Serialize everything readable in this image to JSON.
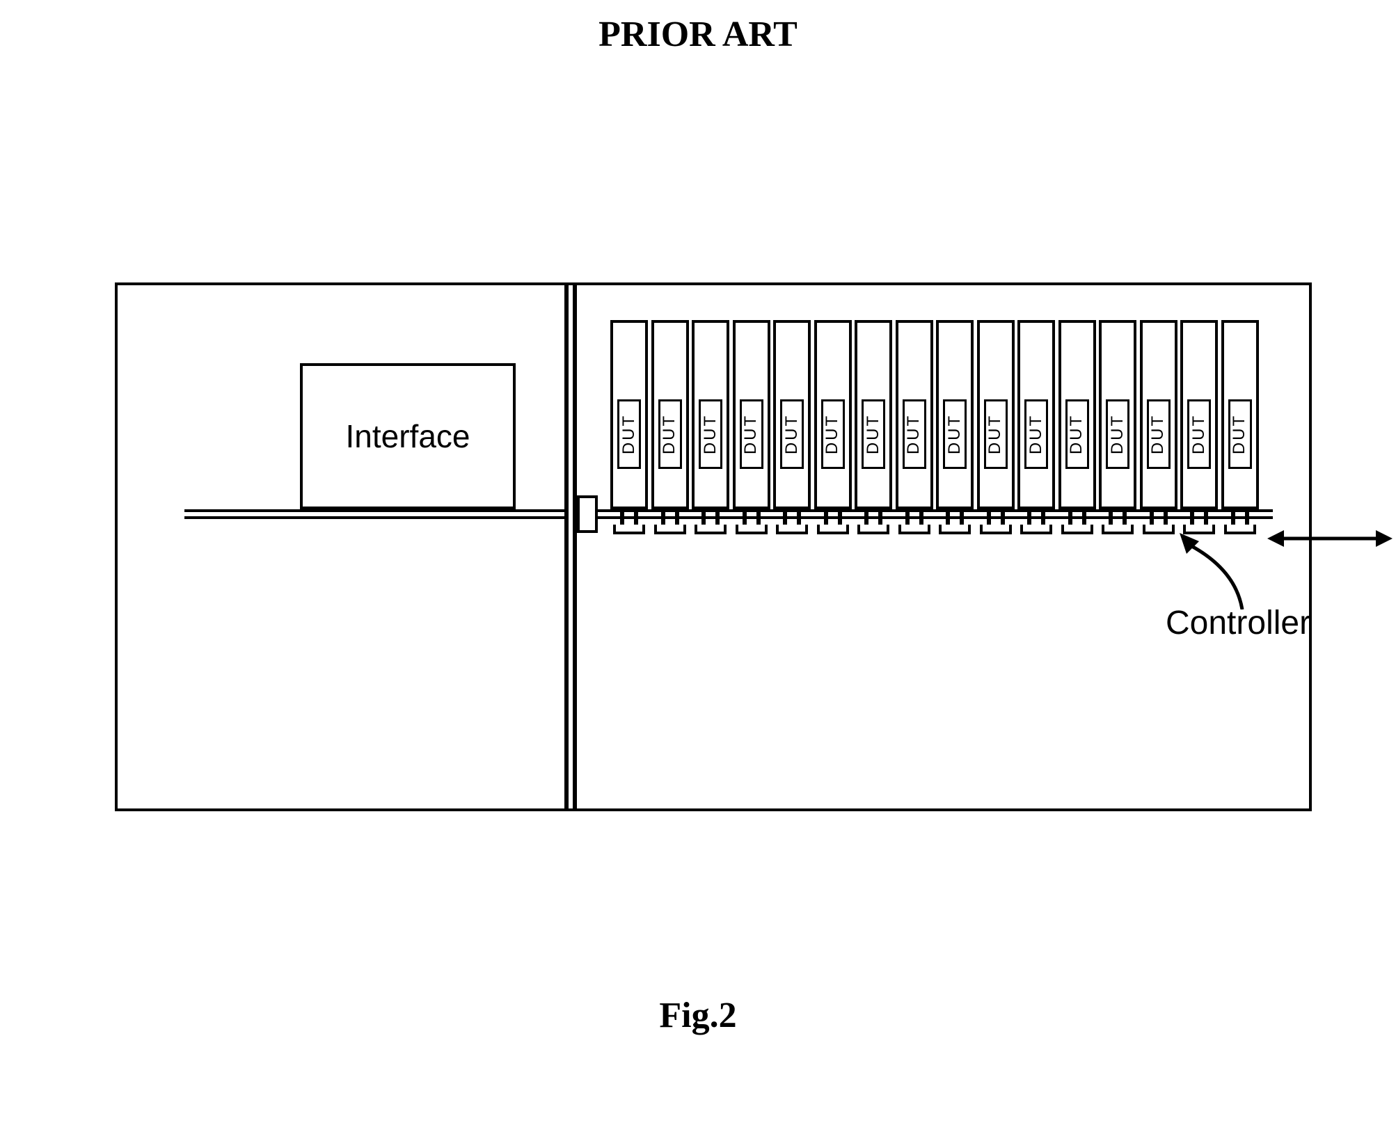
{
  "title": "PRIOR ART",
  "figure_label": "Fig.2",
  "interface_label": "Interface",
  "controller_label": "Controller",
  "dut_label": "DUT",
  "dut_count": 16,
  "dut_spacing": 58.5,
  "dut_width": 54,
  "ctrl_block_width": 46,
  "colors": {
    "stroke": "#000000",
    "bg": "#ffffff"
  },
  "font_sizes": {
    "title": 52,
    "figure": 52,
    "interface": 46,
    "controller": 48,
    "dut": 24
  }
}
